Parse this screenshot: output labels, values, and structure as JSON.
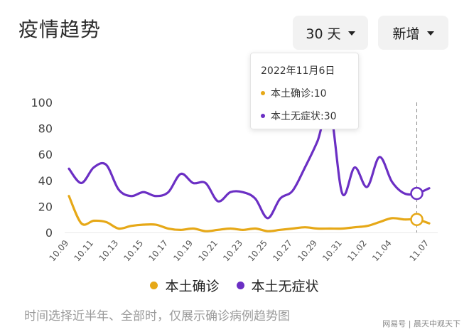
{
  "header": {
    "title": "疫情趋势",
    "range_button": "30 天",
    "mode_button": "新增"
  },
  "tooltip": {
    "date": "2022年11月6日",
    "rows": [
      {
        "label": "本土确诊:10",
        "color": "#E6A817"
      },
      {
        "label": "本土无症状:30",
        "color": "#6B2FC4"
      }
    ]
  },
  "chart_data": {
    "type": "line",
    "x": [
      "10.09",
      "10.10",
      "10.11",
      "10.12",
      "10.13",
      "10.14",
      "10.15",
      "10.16",
      "10.17",
      "10.18",
      "10.19",
      "10.20",
      "10.21",
      "10.22",
      "10.23",
      "10.24",
      "10.25",
      "10.26",
      "10.27",
      "10.28",
      "10.29",
      "10.30",
      "10.31",
      "11.01",
      "11.02",
      "11.03",
      "11.04",
      "11.05",
      "11.06",
      "11.07"
    ],
    "x_tick_labels": [
      "10.09",
      "10.11",
      "10.13",
      "10.15",
      "10.17",
      "10.19",
      "10.21",
      "10.23",
      "10.25",
      "10.27",
      "10.29",
      "10.31",
      "11.02",
      "11.04",
      "11.07"
    ],
    "ylim": [
      0,
      100
    ],
    "y_ticks": [
      0,
      20,
      40,
      60,
      80,
      100
    ],
    "grid": false,
    "legend": "bottom",
    "highlight_x": "11.06",
    "series": [
      {
        "name": "本土确诊",
        "color": "#E6A817",
        "values": [
          28,
          7,
          9,
          8,
          3,
          5,
          6,
          6,
          3,
          2,
          3,
          1,
          2,
          3,
          2,
          3,
          1,
          2,
          3,
          4,
          3,
          3,
          3,
          4,
          5,
          8,
          11,
          10,
          10,
          7
        ]
      },
      {
        "name": "本土无症状",
        "color": "#6B2FC4",
        "values": [
          49,
          38,
          50,
          52,
          33,
          28,
          31,
          28,
          31,
          45,
          38,
          38,
          24,
          31,
          31,
          26,
          11,
          26,
          32,
          50,
          70,
          95,
          30,
          50,
          35,
          58,
          39,
          30,
          30,
          34
        ]
      }
    ]
  },
  "footer": {
    "note": "时间选择近半年、全部时，仅展示确诊病例趋势图",
    "watermark": "网易号 | 晨天中观天下"
  }
}
